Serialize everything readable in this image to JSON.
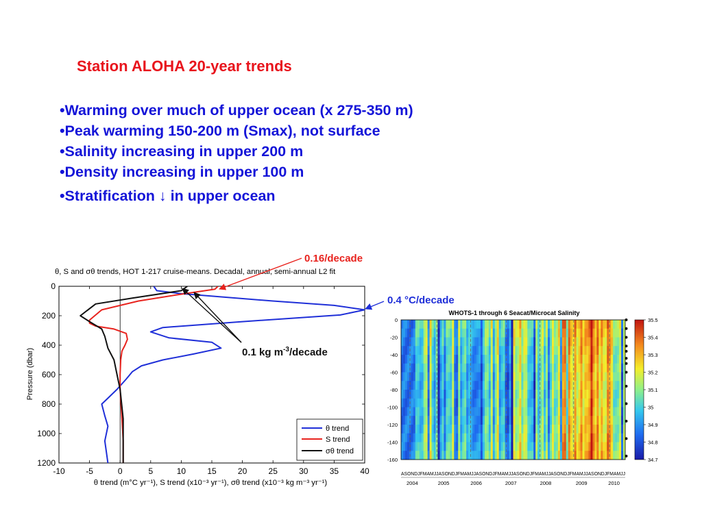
{
  "slide": {
    "title": "Station ALOHA 20-year trends",
    "bullets": [
      "•Warming over much of upper ocean (x 275-350 m)",
      "•Peak warming 150-200 m (Smax), not surface",
      "•Salinity increasing in upper 200 m",
      "•Density increasing in upper 100 m",
      "•Stratification ↓ in upper ocean"
    ]
  },
  "colors": {
    "title": "#e8141c",
    "bullets": "#1414d8",
    "theta": "#1f2fd8",
    "salinity": "#e8231e",
    "density": "#111111"
  },
  "annotations": {
    "red_label": "0.16/decade",
    "blue_label": "0.4 °C/decade",
    "black_label_main": "0.1 kg m",
    "black_label_sup": "-3",
    "black_label_tail": "/decade"
  },
  "chart_data": [
    {
      "type": "line",
      "title": "θ, S and σθ trends, HOT 1-217 cruise-means. Decadal, annual, semi-annual L2 fit",
      "xlabel": "θ trend (m°C yr⁻¹), S trend (x10⁻³ yr⁻¹), σθ trend (x10⁻³ kg m⁻³ yr⁻¹)",
      "ylabel": "Pressure (dbar)",
      "xlim": [
        -10,
        40
      ],
      "ylim": [
        1200,
        0
      ],
      "x_ticks": [
        "-10",
        "-5",
        "0",
        "5",
        "10",
        "15",
        "20",
        "25",
        "30",
        "35",
        "40"
      ],
      "y_ticks": [
        "0",
        "200",
        "400",
        "600",
        "800",
        "1000",
        "1200"
      ],
      "legend_position": "bottom-right",
      "series": [
        {
          "name": "θ trend",
          "points": [
            [
              5.5,
              0
            ],
            [
              6,
              30
            ],
            [
              10,
              50
            ],
            [
              25,
              100
            ],
            [
              35,
              130
            ],
            [
              40,
              160
            ],
            [
              36,
              195
            ],
            [
              20,
              240
            ],
            [
              7,
              280
            ],
            [
              5,
              310
            ],
            [
              8,
              350
            ],
            [
              15,
              380
            ],
            [
              16.5,
              420
            ],
            [
              12,
              460
            ],
            [
              7,
              500
            ],
            [
              3.5,
              540
            ],
            [
              2,
              580
            ],
            [
              1,
              630
            ],
            [
              -0.5,
              700
            ],
            [
              -2,
              760
            ],
            [
              -3,
              800
            ],
            [
              -2.5,
              880
            ],
            [
              -2,
              950
            ],
            [
              -2.5,
              1050
            ],
            [
              -2,
              1200
            ]
          ]
        },
        {
          "name": "S trend",
          "points": [
            [
              16,
              0
            ],
            [
              15.5,
              20
            ],
            [
              9,
              60
            ],
            [
              3,
              100
            ],
            [
              -3,
              160
            ],
            [
              -5,
              230
            ],
            [
              -5,
              250
            ],
            [
              -4,
              270
            ],
            [
              -1,
              290
            ],
            [
              1,
              320
            ],
            [
              1.2,
              360
            ],
            [
              0.8,
              400
            ],
            [
              0.3,
              440
            ],
            [
              0.1,
              500
            ],
            [
              0,
              600
            ],
            [
              0,
              700
            ],
            [
              0.3,
              900
            ],
            [
              0.5,
              1050
            ],
            [
              0.5,
              1200
            ]
          ]
        },
        {
          "name": "σθ trend",
          "points": [
            [
              11,
              0
            ],
            [
              10,
              30
            ],
            [
              2,
              80
            ],
            [
              -4,
              120
            ],
            [
              -6.5,
              200
            ],
            [
              -5,
              240
            ],
            [
              -3,
              290
            ],
            [
              -2.5,
              340
            ],
            [
              -2,
              420
            ],
            [
              -1,
              500
            ],
            [
              -0.5,
              600
            ],
            [
              0,
              700
            ],
            [
              0.5,
              900
            ],
            [
              0.5,
              1200
            ]
          ]
        }
      ]
    },
    {
      "type": "heatmap",
      "title": "WHOTS-1 through 6 Seacat/Microcat  Salinity",
      "years": [
        "2004",
        "2005",
        "2006",
        "2007",
        "2008",
        "2009",
        "2010"
      ],
      "month_initials": "ASONDJFMAMJJASONDJFMAMJJASONDJFMAMJJASONDJFMAMJJASONDJFMAMJJASONDJFMAMJJ",
      "y_ticks": [
        "0",
        "-20",
        "-40",
        "-60",
        "-80",
        "-100",
        "-120",
        "-140",
        "-160"
      ],
      "ylim": [
        -160,
        0
      ],
      "colorbar_ticks": [
        "35.5",
        "35.4",
        "35.3",
        "35.2",
        "35.1",
        "35",
        "34.9",
        "34.8",
        "34.7"
      ],
      "colorbar_range": [
        34.7,
        35.5
      ]
    }
  ]
}
